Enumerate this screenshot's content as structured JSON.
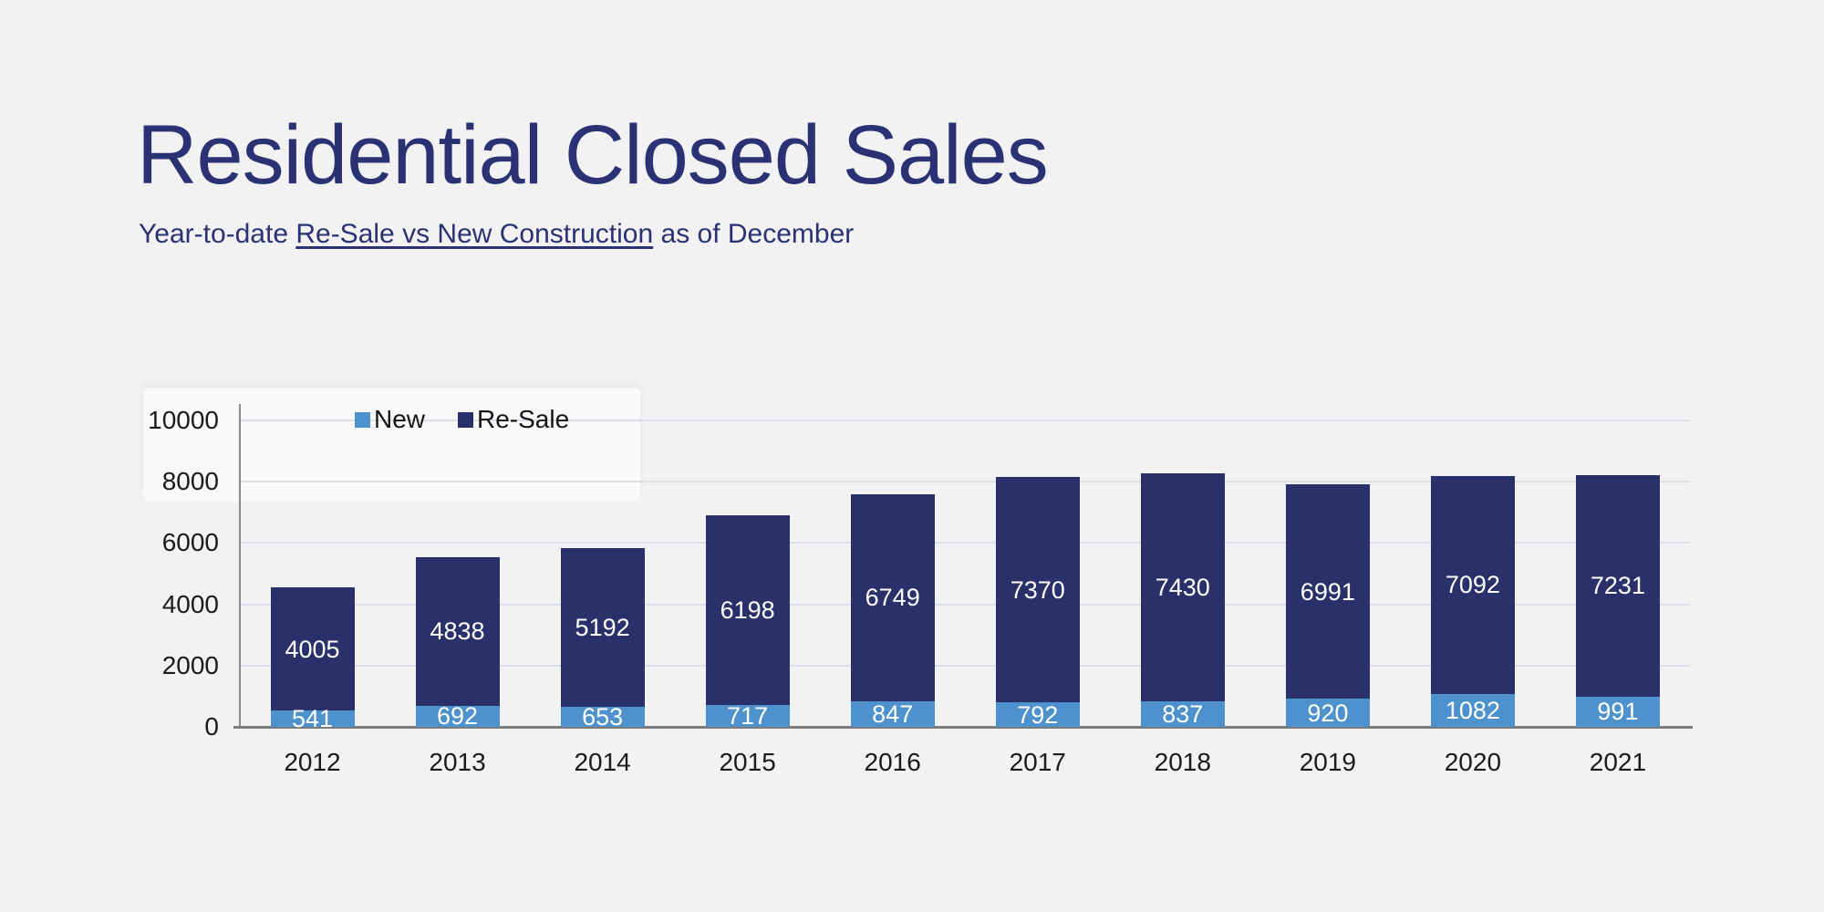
{
  "page": {
    "title": "Residential Closed Sales",
    "subtitle": {
      "prefix": "Year-to-date ",
      "underlined": "Re-Sale vs New Construction",
      "suffix": " as of December"
    }
  },
  "chart_data": {
    "type": "bar",
    "stacked": true,
    "title": "Residential Closed Sales",
    "subtitle": "Year-to-date Re-Sale vs New Construction as of December",
    "categories": [
      "2012",
      "2013",
      "2014",
      "2015",
      "2016",
      "2017",
      "2018",
      "2019",
      "2020",
      "2021"
    ],
    "series": [
      {
        "name": "New",
        "color": "#4D92CC",
        "values": [
          541,
          692,
          653,
          717,
          847,
          792,
          837,
          920,
          1082,
          991
        ]
      },
      {
        "name": "Re-Sale",
        "color": "#2A316A",
        "values": [
          4005,
          4838,
          5192,
          6198,
          6749,
          7370,
          7430,
          6991,
          7092,
          7231
        ]
      }
    ],
    "y_axis": {
      "min": 0,
      "max": 10000,
      "ticks": [
        0,
        2000,
        4000,
        6000,
        8000,
        10000
      ]
    },
    "x_axis": {
      "label": ""
    },
    "grid": true,
    "legend_position": "top-inside-left",
    "value_labels_color": "#FFFFFF"
  },
  "colors": {
    "background": "#F3F2F3",
    "title_text": "#2B3274",
    "gridline": "#D9DFEB",
    "axis_line": "#7C7C7C",
    "tick_text": "#1B1B1B"
  }
}
